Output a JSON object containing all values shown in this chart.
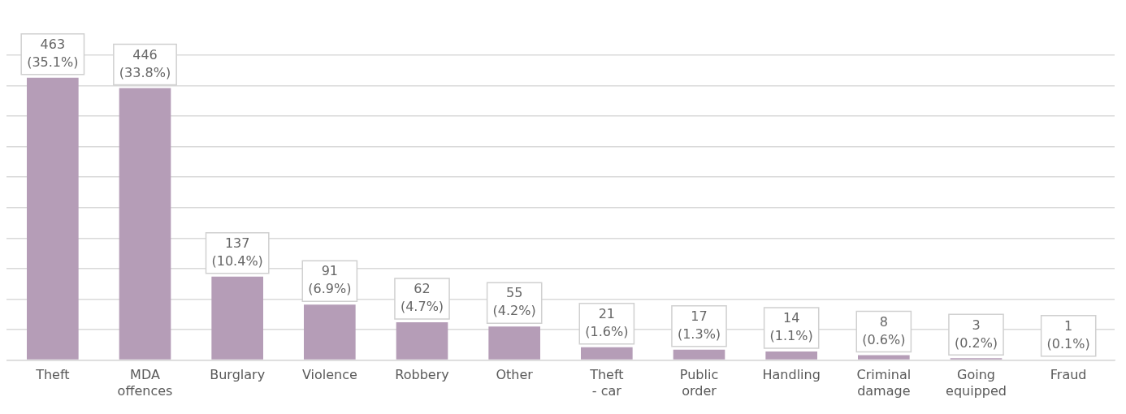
{
  "chart_data": {
    "type": "bar",
    "categories": [
      "Theft",
      "MDA offences",
      "Burglary",
      "Violence",
      "Robbery",
      "Other",
      "Theft - car",
      "Public order",
      "Handling",
      "Criminal damage",
      "Going equipped",
      "Fraud"
    ],
    "values": [
      463,
      446,
      137,
      91,
      62,
      55,
      21,
      17,
      14,
      8,
      3,
      1
    ],
    "value_labels": [
      "463\n(35.1%)",
      "446\n(33.8%)",
      "137\n(10.4%)",
      "91\n(6.9%)",
      "62\n(4.7%)",
      "55\n(4.2%)",
      "21\n(1.6%)",
      "17\n(1.3%)",
      "14\n(1.1%)",
      "8\n(0.6%)",
      "3\n(0.2%)",
      "1\n(0.1%)"
    ],
    "color": "#b59db7",
    "grid": "y",
    "tick_labels": "x",
    "legend": false
  }
}
